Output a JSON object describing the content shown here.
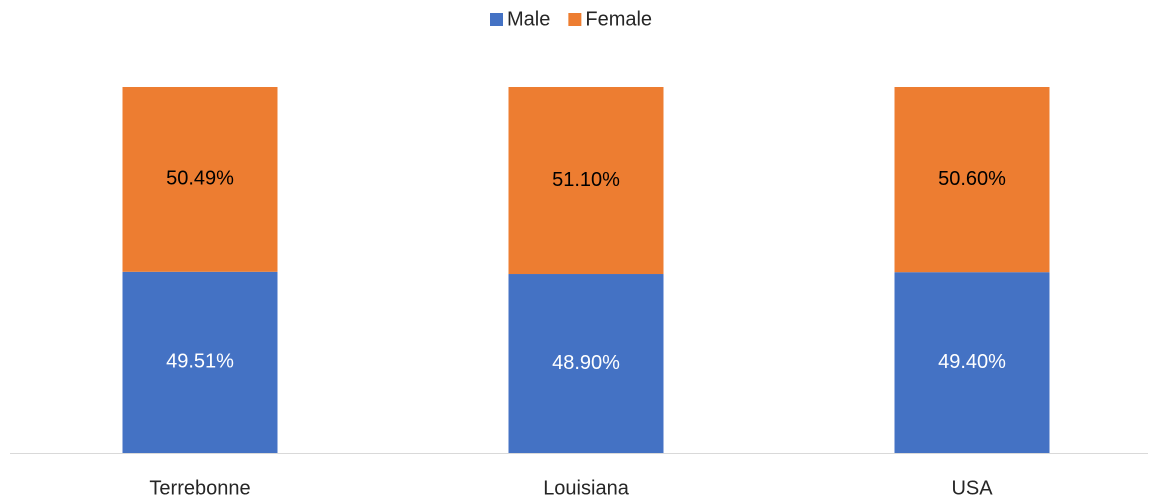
{
  "chart_data": {
    "type": "stacked_bar",
    "categories": [
      "Terrebonne",
      "Louisiana",
      "USA"
    ],
    "series": [
      {
        "name": "Male",
        "color": "#4472c4",
        "values": [
          49.51,
          48.9,
          49.4
        ],
        "value_labels": [
          "49.51%",
          "48.90%",
          "49.40%"
        ]
      },
      {
        "name": "Female",
        "color": "#ed7d31",
        "values": [
          50.49,
          51.1,
          50.6
        ],
        "value_labels": [
          "50.49%",
          "51.10%",
          "50.60%"
        ]
      }
    ],
    "ylim": [
      0,
      100
    ],
    "legend": "top"
  }
}
